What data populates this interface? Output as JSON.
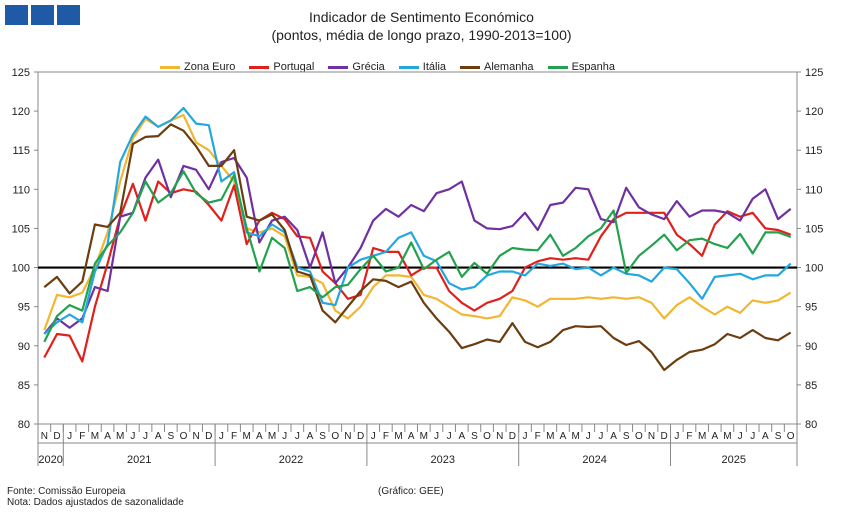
{
  "chart_data": {
    "type": "line",
    "title": "Indicador de Sentimento Económico",
    "subtitle": "(pontos, média de longo prazo, 1990-2013=100)",
    "ylim": [
      80,
      125
    ],
    "yticks": [
      80,
      85,
      90,
      95,
      100,
      105,
      110,
      115,
      120,
      125
    ],
    "reference_line": 100,
    "month_labels": [
      "N",
      "D",
      "J",
      "F",
      "M",
      "A",
      "M",
      "J",
      "J",
      "A",
      "S",
      "O",
      "N",
      "D",
      "J",
      "F",
      "M",
      "A",
      "M",
      "J",
      "J",
      "A",
      "S",
      "O",
      "N",
      "D",
      "J",
      "F",
      "M",
      "A",
      "M",
      "J",
      "J",
      "A",
      "S",
      "O",
      "N",
      "D",
      "J",
      "F",
      "M",
      "A",
      "M",
      "J",
      "J",
      "A",
      "S",
      "O",
      "N",
      "D",
      "J",
      "F",
      "M",
      "A",
      "M",
      "J",
      "J",
      "A",
      "S",
      "O"
    ],
    "years": [
      {
        "label": "2020",
        "start": 0,
        "count": 2
      },
      {
        "label": "2021",
        "start": 2,
        "count": 12
      },
      {
        "label": "2022",
        "start": 14,
        "count": 12
      },
      {
        "label": "2023",
        "start": 26,
        "count": 12
      },
      {
        "label": "2024",
        "start": 38,
        "count": 12
      },
      {
        "label": "2025",
        "start": 50,
        "count": 10
      }
    ],
    "series": [
      {
        "name": "Zona Euro",
        "color": "#f2b630",
        "values": [
          92.0,
          96.5,
          96.2,
          96.8,
          100.0,
          104.5,
          111.0,
          116.5,
          119.0,
          118.0,
          118.8,
          119.5,
          116.0,
          115.0,
          113.0,
          111.0,
          105.0,
          104.5,
          105.0,
          104.0,
          99.0,
          98.8,
          98.0,
          94.5,
          93.5,
          95.0,
          97.5,
          99.0,
          99.0,
          98.8,
          96.5,
          96.0,
          95.0,
          94.0,
          93.8,
          93.5,
          93.8,
          96.2,
          95.8,
          95.0,
          96.0,
          96.0,
          96.0,
          96.2,
          96.0,
          96.2,
          96.0,
          96.2,
          95.5,
          93.5,
          95.2,
          96.2,
          95.0,
          94.0,
          95.0,
          94.2,
          95.8,
          95.5,
          95.8,
          96.8
        ]
      },
      {
        "name": "Portugal",
        "color": "#e0201b",
        "values": [
          88.5,
          91.5,
          91.3,
          88.0,
          95.0,
          100.5,
          106.5,
          110.7,
          106.0,
          111.0,
          109.5,
          110.0,
          109.7,
          108.0,
          106.0,
          110.5,
          103.0,
          106.0,
          107.0,
          106.2,
          104.0,
          103.8,
          99.5,
          98.0,
          96.0,
          96.5,
          102.5,
          102.0,
          102.0,
          99.0,
          100.0,
          100.0,
          97.0,
          95.5,
          94.5,
          95.5,
          96.0,
          97.0,
          100.0,
          100.8,
          101.2,
          101.0,
          101.2,
          101.0,
          104.0,
          106.2,
          107.0,
          107.0,
          107.0,
          107.0,
          104.2,
          103.0,
          101.5,
          105.5,
          107.2,
          106.5,
          107.0,
          105.0,
          104.8,
          104.2
        ]
      },
      {
        "name": "Grécia",
        "color": "#7030a0",
        "values": [
          91.5,
          93.5,
          92.3,
          93.5,
          97.5,
          97.0,
          106.5,
          107.0,
          111.5,
          113.8,
          109.0,
          113.0,
          112.5,
          110.0,
          113.5,
          114.0,
          111.5,
          103.2,
          106.0,
          106.5,
          104.8,
          100.0,
          104.5,
          98.0,
          100.0,
          102.5,
          106.0,
          107.5,
          106.5,
          108.0,
          107.2,
          109.5,
          110.0,
          111.0,
          106.0,
          105.0,
          104.9,
          105.3,
          107.0,
          104.8,
          108.0,
          108.3,
          110.2,
          110.0,
          106.2,
          105.8,
          110.2,
          107.7,
          106.8,
          106.2,
          108.5,
          106.5,
          107.3,
          107.3,
          107.0,
          106.0,
          108.8,
          110.0,
          106.2,
          107.5
        ]
      },
      {
        "name": "Itália",
        "color": "#23a7e0",
        "values": [
          91.5,
          93.0,
          94.0,
          93.0,
          99.5,
          103.0,
          113.5,
          117.0,
          119.3,
          118.0,
          118.8,
          120.4,
          118.4,
          118.2,
          111.0,
          112.2,
          104.5,
          104.0,
          105.5,
          104.5,
          100.0,
          99.5,
          95.5,
          95.2,
          100.0,
          101.0,
          101.5,
          102.0,
          103.8,
          104.5,
          101.5,
          100.8,
          98.0,
          97.2,
          97.5,
          99.0,
          99.5,
          99.5,
          99.0,
          100.5,
          100.2,
          100.5,
          99.8,
          100.0,
          99.0,
          100.0,
          99.2,
          99.0,
          98.2,
          100.0,
          99.8,
          98.0,
          96.0,
          98.8,
          99.0,
          99.2,
          98.5,
          99.0,
          99.0,
          100.5
        ]
      },
      {
        "name": "Alemanha",
        "color": "#6b3d0f",
        "values": [
          97.5,
          98.8,
          96.7,
          98.2,
          105.5,
          105.2,
          107.0,
          115.8,
          116.7,
          116.8,
          118.3,
          117.5,
          115.5,
          113.0,
          113.0,
          115.0,
          106.5,
          106.0,
          106.8,
          104.8,
          99.5,
          99.0,
          94.5,
          93.0,
          95.0,
          97.0,
          98.5,
          98.3,
          97.5,
          98.2,
          95.5,
          93.5,
          91.8,
          89.7,
          90.2,
          90.8,
          90.5,
          92.9,
          90.5,
          89.8,
          90.5,
          92.0,
          92.5,
          92.4,
          92.5,
          91.0,
          90.1,
          90.6,
          89.2,
          86.9,
          88.2,
          89.2,
          89.5,
          90.2,
          91.5,
          91.0,
          92.0,
          91.0,
          90.7,
          91.7
        ]
      },
      {
        "name": "Espanha",
        "color": "#22a24e",
        "values": [
          90.5,
          93.8,
          95.2,
          94.5,
          100.5,
          102.8,
          104.5,
          107.0,
          111.0,
          108.3,
          109.5,
          112.3,
          109.5,
          108.3,
          108.7,
          111.8,
          105.0,
          99.5,
          103.8,
          102.5,
          97.0,
          97.5,
          96.2,
          97.5,
          97.8,
          99.8,
          101.5,
          99.5,
          100.0,
          103.2,
          99.8,
          101.0,
          102.0,
          98.8,
          100.6,
          99.2,
          101.5,
          102.5,
          102.3,
          102.2,
          104.2,
          101.5,
          102.5,
          104.0,
          105.0,
          107.3,
          99.3,
          101.5,
          102.8,
          104.2,
          102.2,
          103.5,
          103.7,
          103.0,
          102.5,
          104.3,
          101.8,
          104.5,
          104.5,
          103.9
        ]
      }
    ]
  },
  "footer": {
    "source": "Fonte: Comissão Europeia",
    "note": "Nota: Dados ajustados de sazonalidade",
    "credit": "(Gráfico: GEE)"
  }
}
